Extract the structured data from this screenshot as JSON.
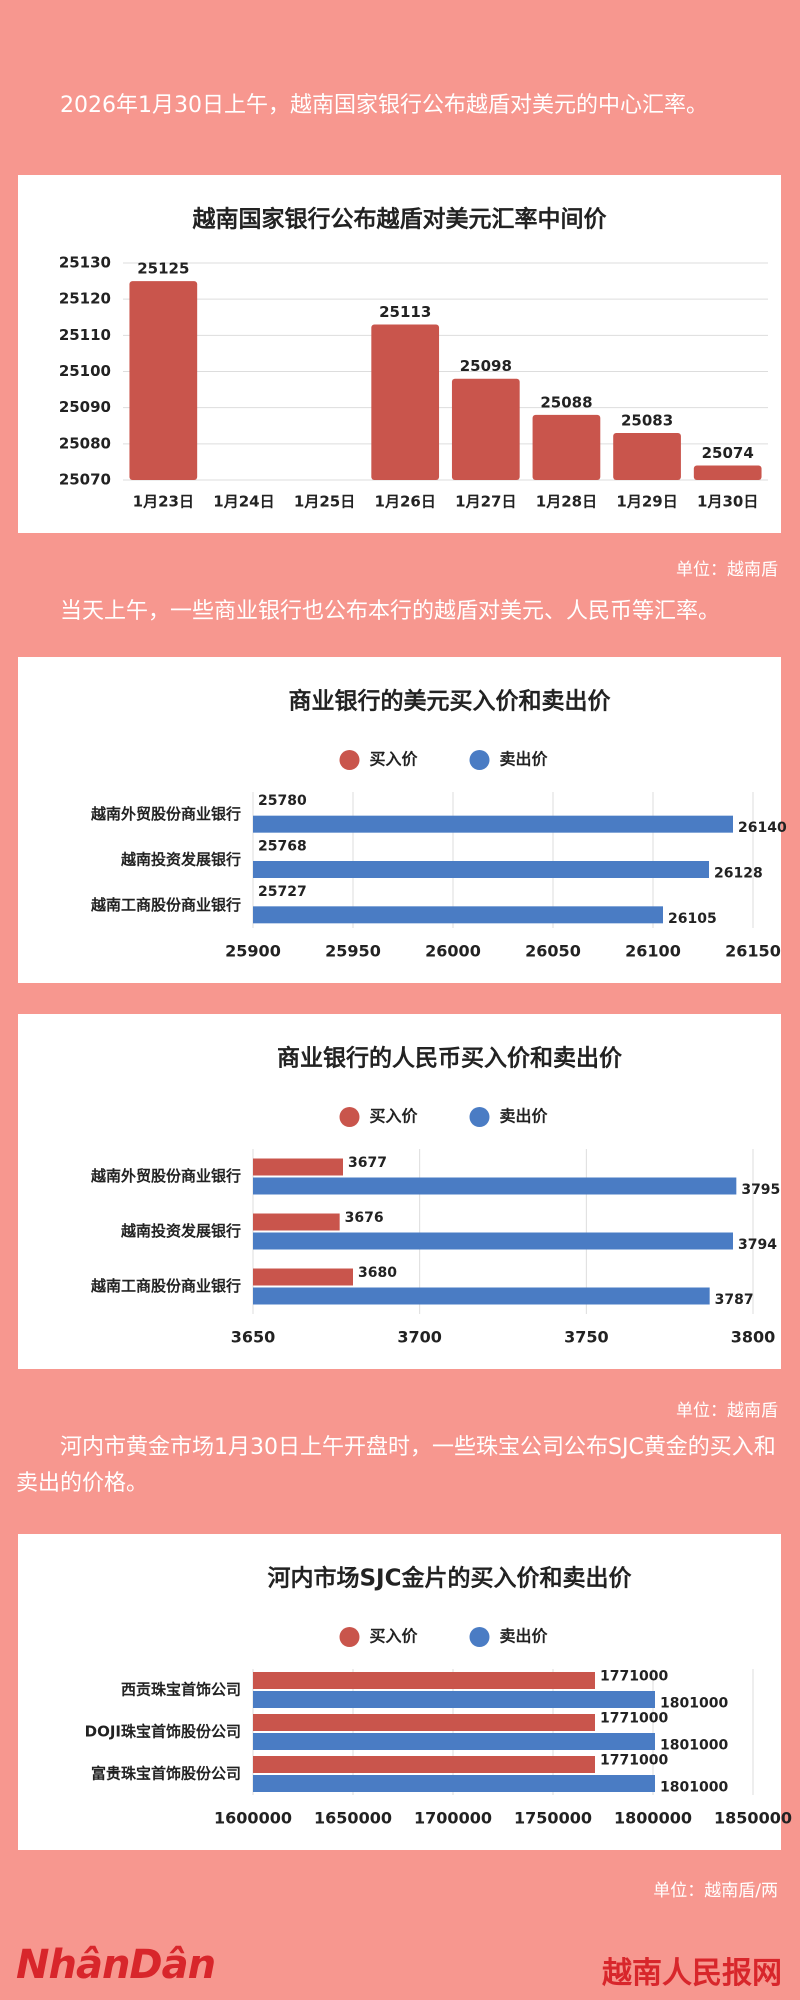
{
  "texts": [
    "2026年1月30日上午，越南国家银行公布越盾对美元的中心汇率。",
    "当天上午，一些商业银行也公布本行的越盾对美元、人民币等汇率。",
    "河内市黄金市场1月30日上午开盘时，一些珠宝公司公布SJC黄金的买入和卖出的价格。"
  ],
  "units": [
    "单位：越南盾",
    "单位：越南盾",
    "单位：越南盾/两"
  ],
  "footer": {
    "left": "NhânDân",
    "right": "越南人民报网"
  },
  "chart_data": [
    {
      "type": "bar",
      "title": "越南国家银行公布越盾对美元汇率中间价",
      "categories": [
        "1月23日",
        "1月24日",
        "1月25日",
        "1月26日",
        "1月27日",
        "1月28日",
        "1月29日",
        "1月30日"
      ],
      "values": [
        25125,
        null,
        null,
        25113,
        25098,
        25088,
        25083,
        25074
      ],
      "color": "#c9554c",
      "ylim": [
        25070,
        25130
      ],
      "yticks": [
        25070,
        25080,
        25090,
        25100,
        25110,
        25120,
        25130
      ],
      "grid": true
    },
    {
      "type": "hbar",
      "title": "商业银行的美元买入价和卖出价",
      "categories": [
        "越南外贸股份商业银行",
        "越南投资发展银行",
        "越南工商股份商业银行"
      ],
      "series": [
        {
          "name": "买入价",
          "color": "#c9554c",
          "values": [
            25780,
            25768,
            25727
          ]
        },
        {
          "name": "卖出价",
          "color": "#4a7cc4",
          "values": [
            26140,
            26128,
            26105
          ]
        }
      ],
      "xlim": [
        25900,
        26150
      ],
      "xticks": [
        25900,
        25950,
        26000,
        26050,
        26100,
        26150
      ],
      "grid": true
    },
    {
      "type": "hbar",
      "title": "商业银行的人民币买入价和卖出价",
      "categories": [
        "越南外贸股份商业银行",
        "越南投资发展银行",
        "越南工商股份商业银行"
      ],
      "series": [
        {
          "name": "买入价",
          "color": "#c9554c",
          "values": [
            3677,
            3676,
            3680
          ]
        },
        {
          "name": "卖出价",
          "color": "#4a7cc4",
          "values": [
            3795,
            3794,
            3787
          ]
        }
      ],
      "xlim": [
        3650,
        3800
      ],
      "xticks": [
        3650,
        3700,
        3750,
        3800
      ],
      "grid": true
    },
    {
      "type": "hbar",
      "title": "河内市场SJC金片的买入价和卖出价",
      "categories": [
        "西贡珠宝首饰公司",
        "DOJI珠宝首饰股份公司",
        "富贵珠宝首饰股份公司"
      ],
      "series": [
        {
          "name": "买入价",
          "color": "#c9554c",
          "values": [
            1771000,
            1771000,
            1771000
          ]
        },
        {
          "name": "卖出价",
          "color": "#4a7cc4",
          "values": [
            1801000,
            1801000,
            1801000
          ]
        }
      ],
      "xlim": [
        1600000,
        1850000
      ],
      "xticks": [
        1600000,
        1650000,
        1700000,
        1750000,
        1800000,
        1850000
      ],
      "grid": true
    }
  ]
}
